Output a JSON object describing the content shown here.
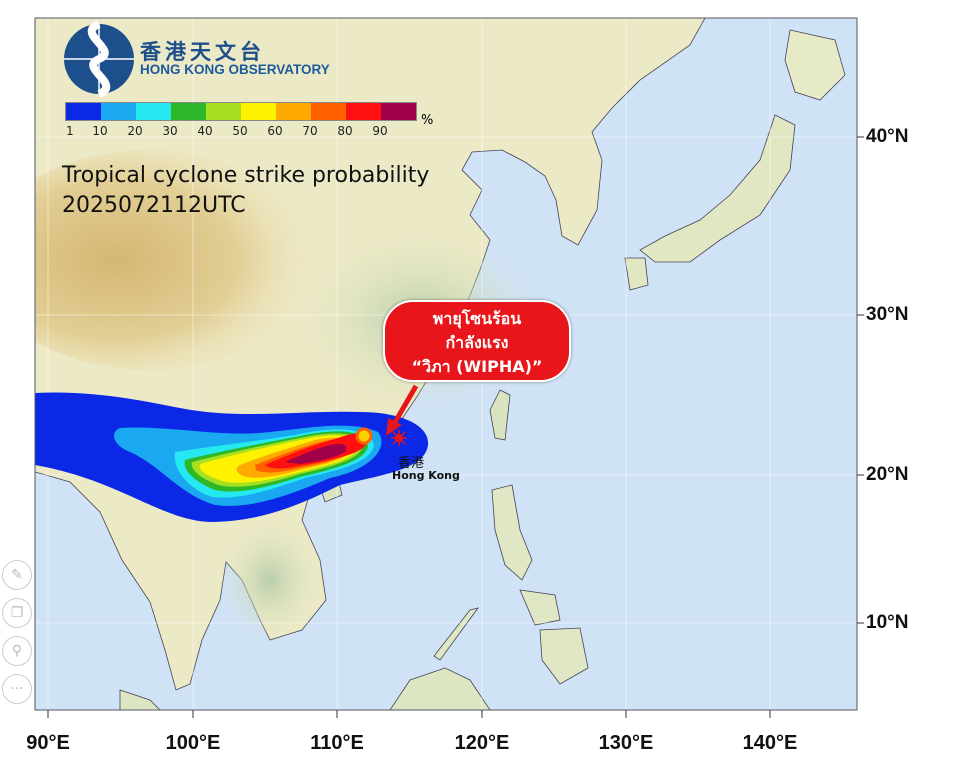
{
  "logo": {
    "zh": "香港天文台",
    "en": "HONG KONG OBSERVATORY"
  },
  "legend": {
    "unit": "%",
    "labels": [
      "1",
      "10",
      "20",
      "30",
      "40",
      "50",
      "60",
      "70",
      "80",
      "90"
    ],
    "colors": [
      "#0a28e6",
      "#1aa8f0",
      "#25e8f0",
      "#2db82a",
      "#a6e020",
      "#fff200",
      "#ffaa00",
      "#ff6000",
      "#ff1010",
      "#a0004a"
    ]
  },
  "title": "Tropical cyclone strike probability",
  "datetime": "2025072112UTC",
  "callout": {
    "lines": [
      "พายุโซนร้อน",
      "กำลังแรง",
      "“วิภา (WIPHA)”"
    ],
    "color": "#e8151b"
  },
  "location": {
    "zh": "香港",
    "en": "Hong Kong"
  },
  "axes": {
    "lat_ticks": [
      "40°N",
      "30°N",
      "20°N",
      "10°N"
    ],
    "lon_ticks": [
      "90°E",
      "100°E",
      "110°E",
      "120°E",
      "130°E",
      "140°E"
    ]
  },
  "toolbar": [
    "pencil-icon",
    "copy-icon",
    "search-icon",
    "more-icon"
  ],
  "toolbar_glyphs": [
    "✎",
    "❐",
    "⚲",
    "···"
  ]
}
